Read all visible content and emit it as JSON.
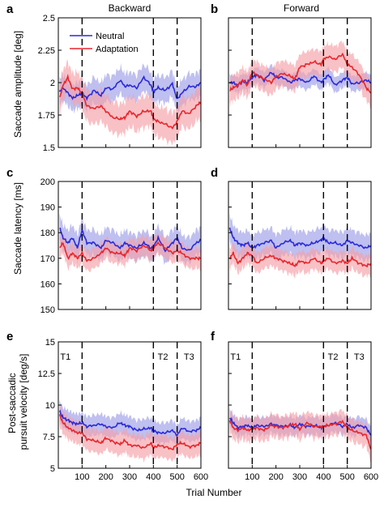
{
  "colors": {
    "neutral": "#2a2ad8",
    "adaptation": "#e8262c",
    "neutral_band": "#9c9ce8",
    "adaptation_band": "#f5a0a8"
  },
  "legend": [
    "Neutral",
    "Adaptation"
  ],
  "xlabel": "Trial Number",
  "chart_data": [
    {
      "type": "line",
      "panel": "a",
      "title": "Backward",
      "ylabel": "Saccade amplitude [deg]",
      "ylim": [
        1.5,
        2.5
      ],
      "yticks": [
        "1.5",
        "1.75",
        "2",
        "2.25",
        "2.5"
      ],
      "xlim": [
        0,
        600
      ],
      "xticks": [],
      "grid": false,
      "legend": "top-left",
      "markers": [
        100,
        400,
        500
      ],
      "annotations": [],
      "series": [
        {
          "name": "Neutral",
          "x": [
            5,
            20,
            40,
            60,
            80,
            100,
            120,
            150,
            180,
            200,
            230,
            260,
            280,
            300,
            330,
            360,
            390,
            400,
            420,
            450,
            480,
            500,
            520,
            550,
            580,
            600
          ],
          "y": [
            1.93,
            1.96,
            1.92,
            1.88,
            1.9,
            1.92,
            1.88,
            1.94,
            1.9,
            1.96,
            1.95,
            2.02,
            1.97,
            1.98,
            1.96,
            2.04,
            1.98,
            1.93,
            1.96,
            1.94,
            1.99,
            1.87,
            1.92,
            1.97,
            1.97,
            2.0
          ],
          "band": 0.1
        },
        {
          "name": "Adaptation",
          "x": [
            5,
            20,
            40,
            60,
            80,
            100,
            120,
            150,
            180,
            200,
            230,
            260,
            280,
            300,
            330,
            360,
            390,
            400,
            420,
            450,
            480,
            500,
            520,
            550,
            580,
            600
          ],
          "y": [
            1.88,
            1.98,
            2.04,
            1.95,
            1.96,
            1.92,
            1.82,
            1.8,
            1.82,
            1.78,
            1.73,
            1.72,
            1.73,
            1.78,
            1.74,
            1.78,
            1.78,
            1.72,
            1.7,
            1.68,
            1.65,
            1.7,
            1.78,
            1.76,
            1.82,
            1.85
          ],
          "band": 0.12
        }
      ]
    },
    {
      "type": "line",
      "panel": "b",
      "title": "Forward",
      "ylabel": "",
      "ylim": [
        1.5,
        2.5
      ],
      "yticks": [],
      "xlim": [
        0,
        600
      ],
      "xticks": [],
      "grid": false,
      "legend": "",
      "markers": [
        100,
        400,
        500
      ],
      "annotations": [],
      "series": [
        {
          "name": "Neutral",
          "x": [
            5,
            20,
            40,
            60,
            80,
            100,
            120,
            150,
            180,
            200,
            230,
            260,
            280,
            300,
            330,
            360,
            390,
            400,
            420,
            450,
            480,
            500,
            520,
            550,
            580,
            600
          ],
          "y": [
            2.0,
            2.0,
            1.98,
            2.01,
            2.0,
            2.04,
            2.06,
            2.02,
            2.08,
            2.04,
            2.04,
            2.0,
            2.02,
            2.03,
            2.0,
            2.05,
            2.0,
            2.02,
            2.06,
            1.98,
            2.02,
            2.04,
            1.99,
            2.0,
            2.02,
            2.0
          ],
          "band": 0.06
        },
        {
          "name": "Adaptation",
          "x": [
            5,
            20,
            40,
            60,
            80,
            100,
            120,
            150,
            180,
            200,
            230,
            260,
            280,
            300,
            330,
            360,
            390,
            400,
            420,
            450,
            480,
            500,
            520,
            550,
            580,
            600
          ],
          "y": [
            1.94,
            1.96,
            1.98,
            2.02,
            1.98,
            2.08,
            2.06,
            2.03,
            2.0,
            2.05,
            2.07,
            2.05,
            2.03,
            2.12,
            2.14,
            2.16,
            2.14,
            2.18,
            2.2,
            2.18,
            2.22,
            2.14,
            2.12,
            2.06,
            1.96,
            1.92
          ],
          "band": 0.1
        }
      ]
    },
    {
      "type": "line",
      "panel": "c",
      "title": "",
      "ylabel": "Saccade latency [ms]",
      "ylim": [
        150,
        200
      ],
      "yticks": [
        "150",
        "160",
        "170",
        "180",
        "190",
        "200"
      ],
      "xlim": [
        0,
        600
      ],
      "xticks": [],
      "grid": false,
      "legend": "",
      "markers": [
        100,
        400,
        500
      ],
      "annotations": [],
      "series": [
        {
          "name": "Neutral",
          "x": [
            5,
            20,
            40,
            60,
            80,
            100,
            120,
            150,
            180,
            200,
            230,
            260,
            280,
            300,
            330,
            360,
            390,
            400,
            420,
            450,
            480,
            500,
            520,
            550,
            580,
            600
          ],
          "y": [
            182,
            178,
            176,
            178,
            174,
            181,
            176,
            176,
            174,
            177,
            176,
            174,
            176,
            175,
            174,
            176,
            174,
            174,
            178,
            173,
            176,
            178,
            174,
            173,
            176,
            177
          ],
          "band": 5
        },
        {
          "name": "Adaptation",
          "x": [
            5,
            20,
            40,
            60,
            80,
            100,
            120,
            150,
            180,
            200,
            230,
            260,
            280,
            300,
            330,
            360,
            390,
            400,
            420,
            450,
            480,
            500,
            520,
            550,
            580,
            600
          ],
          "y": [
            174,
            176,
            170,
            172,
            170,
            172,
            169,
            170,
            172,
            174,
            172,
            172,
            171,
            174,
            173,
            175,
            173,
            174,
            176,
            174,
            172,
            173,
            172,
            170,
            170,
            170
          ],
          "band": 4
        }
      ]
    },
    {
      "type": "line",
      "panel": "d",
      "title": "",
      "ylabel": "",
      "ylim": [
        150,
        200
      ],
      "yticks": [],
      "xlim": [
        0,
        600
      ],
      "xticks": [],
      "grid": false,
      "legend": "",
      "markers": [
        100,
        400,
        500
      ],
      "annotations": [],
      "series": [
        {
          "name": "Neutral",
          "x": [
            5,
            20,
            40,
            60,
            80,
            100,
            120,
            150,
            180,
            200,
            230,
            260,
            280,
            300,
            330,
            360,
            390,
            400,
            420,
            450,
            480,
            500,
            520,
            550,
            580,
            600
          ],
          "y": [
            182,
            178,
            176,
            175,
            176,
            174,
            175,
            176,
            177,
            174,
            176,
            177,
            175,
            176,
            175,
            176,
            177,
            178,
            176,
            176,
            175,
            177,
            176,
            175,
            174,
            175
          ],
          "band": 5
        },
        {
          "name": "Adaptation",
          "x": [
            5,
            20,
            40,
            60,
            80,
            100,
            120,
            150,
            180,
            200,
            230,
            260,
            280,
            300,
            330,
            360,
            390,
            400,
            420,
            450,
            480,
            500,
            520,
            550,
            580,
            600
          ],
          "y": [
            170,
            172,
            168,
            170,
            172,
            171,
            168,
            170,
            171,
            170,
            169,
            168,
            167,
            169,
            168,
            170,
            168,
            169,
            170,
            168,
            169,
            168,
            170,
            168,
            167,
            168
          ],
          "band": 4
        }
      ]
    },
    {
      "type": "line",
      "panel": "e",
      "title": "",
      "ylabel": "Post-saccadic pursuit velocity [deg/s]",
      "ylim": [
        5,
        15
      ],
      "yticks": [
        "5",
        "7.5",
        "10",
        "12.5",
        "15"
      ],
      "xlim": [
        0,
        600
      ],
      "xticks": [
        "100",
        "200",
        "300",
        "400",
        "500",
        "600"
      ],
      "grid": false,
      "legend": "",
      "markers": [
        100,
        400,
        500
      ],
      "annotations": [
        {
          "text": "T1",
          "x": 30
        },
        {
          "text": "T2",
          "x": 440
        },
        {
          "text": "T3",
          "x": 550
        }
      ],
      "series": [
        {
          "name": "Neutral",
          "x": [
            5,
            20,
            40,
            60,
            80,
            100,
            120,
            150,
            180,
            200,
            230,
            260,
            280,
            300,
            330,
            360,
            390,
            400,
            420,
            450,
            480,
            500,
            520,
            550,
            580,
            600
          ],
          "y": [
            9.5,
            9.0,
            8.8,
            8.6,
            8.5,
            8.6,
            8.3,
            8.4,
            8.5,
            8.3,
            8.2,
            8.6,
            8.4,
            8.3,
            8.0,
            8.1,
            8.2,
            8.0,
            7.8,
            7.8,
            8.0,
            7.6,
            8.2,
            7.9,
            8.0,
            8.2
          ],
          "band": 0.8
        },
        {
          "name": "Adaptation",
          "x": [
            5,
            20,
            40,
            60,
            80,
            100,
            120,
            150,
            180,
            200,
            230,
            260,
            280,
            300,
            330,
            360,
            390,
            400,
            420,
            450,
            480,
            500,
            520,
            550,
            580,
            600
          ],
          "y": [
            9.2,
            8.6,
            8.2,
            8.0,
            7.8,
            7.8,
            7.3,
            7.2,
            7.0,
            7.4,
            7.1,
            6.9,
            7.2,
            6.8,
            6.8,
            6.6,
            7.0,
            6.6,
            6.8,
            6.7,
            6.5,
            6.9,
            7.0,
            6.7,
            6.8,
            7.0
          ],
          "band": 0.9
        }
      ]
    },
    {
      "type": "line",
      "panel": "f",
      "title": "",
      "ylabel": "",
      "ylim": [
        5,
        15
      ],
      "yticks": [],
      "xlim": [
        0,
        600
      ],
      "xticks": [
        "100",
        "200",
        "300",
        "400",
        "500",
        "600"
      ],
      "grid": false,
      "legend": "",
      "markers": [
        100,
        400,
        500
      ],
      "annotations": [
        {
          "text": "T1",
          "x": 30
        },
        {
          "text": "T2",
          "x": 440
        },
        {
          "text": "T3",
          "x": 550
        }
      ],
      "series": [
        {
          "name": "Neutral",
          "x": [
            5,
            20,
            40,
            60,
            80,
            100,
            120,
            150,
            180,
            200,
            230,
            260,
            280,
            300,
            330,
            360,
            390,
            400,
            420,
            450,
            480,
            500,
            520,
            550,
            580,
            600
          ],
          "y": [
            9.0,
            8.6,
            8.2,
            8.3,
            8.4,
            8.2,
            8.4,
            8.3,
            8.5,
            8.4,
            8.3,
            8.4,
            8.2,
            8.5,
            8.3,
            8.4,
            8.2,
            8.3,
            8.4,
            8.6,
            8.3,
            8.5,
            8.2,
            8.4,
            8.2,
            7.6
          ],
          "band": 0.7
        },
        {
          "name": "Adaptation",
          "x": [
            5,
            20,
            40,
            60,
            80,
            100,
            120,
            150,
            180,
            200,
            230,
            260,
            280,
            300,
            330,
            360,
            390,
            400,
            420,
            450,
            480,
            500,
            520,
            550,
            580,
            600
          ],
          "y": [
            8.8,
            8.2,
            8.0,
            8.2,
            8.0,
            8.1,
            8.2,
            8.0,
            8.4,
            8.3,
            8.2,
            8.4,
            8.5,
            8.1,
            8.6,
            8.3,
            8.3,
            8.3,
            8.4,
            8.5,
            8.7,
            8.2,
            8.0,
            7.8,
            7.6,
            6.5
          ],
          "band": 0.9
        }
      ]
    }
  ]
}
